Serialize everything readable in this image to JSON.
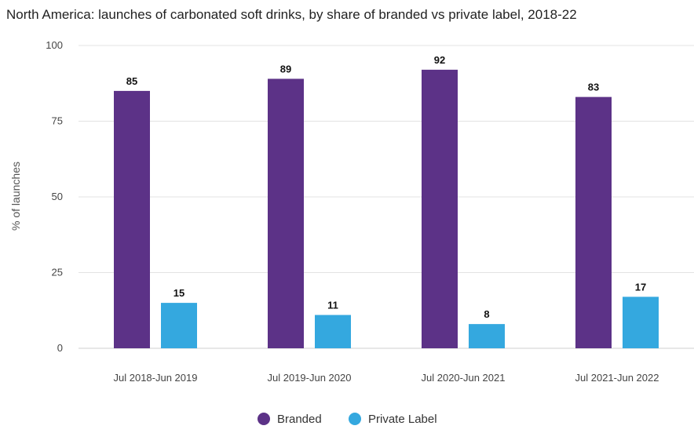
{
  "chart_data": {
    "type": "bar",
    "title": "North America: launches of carbonated soft drinks, by share of branded vs private label, 2018-22",
    "xlabel": "",
    "ylabel": "% of launches",
    "ylim": [
      0,
      100
    ],
    "yticks": [
      0,
      25,
      50,
      75,
      100
    ],
    "categories": [
      "Jul 2018-Jun 2019",
      "Jul 2019-Jun 2020",
      "Jul 2020-Jun 2021",
      "Jul 2021-Jun 2022"
    ],
    "series": [
      {
        "name": "Branded",
        "color": "#5c3287",
        "values": [
          85,
          89,
          92,
          83
        ]
      },
      {
        "name": "Private Label",
        "color": "#34a8df",
        "values": [
          15,
          11,
          8,
          17
        ]
      }
    ],
    "grid": true,
    "legend": "bottom-center",
    "data_labels": true
  }
}
